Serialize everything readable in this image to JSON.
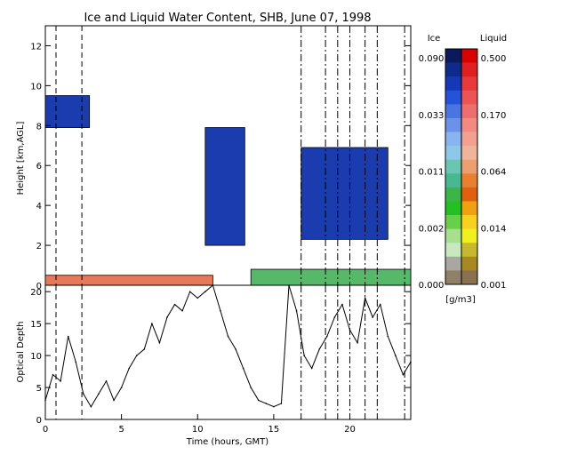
{
  "chart_data": [
    {
      "type": "heatmap",
      "title": "Ice and Liquid Water Content, SHB, June 07, 1998",
      "ylabel": "Height [km,AGL]",
      "xlim": [
        0,
        24
      ],
      "ylim": [
        0,
        13
      ],
      "yticks": [
        "0",
        "2",
        "4",
        "6",
        "8",
        "10",
        "12"
      ],
      "colorbar": {
        "ice_label": "Ice",
        "liquid_label": "Liquid",
        "units": "[g/m3]",
        "ice_ticks": [
          "0.090",
          "0.033",
          "0.011",
          "0.002",
          "0.000"
        ],
        "liquid_ticks": [
          "0.500",
          "0.170",
          "0.064",
          "0.014",
          "0.001"
        ],
        "ice_colors": [
          "#0a1a5a",
          "#0e2a8a",
          "#1638b8",
          "#2452d8",
          "#4a74e0",
          "#6a92e8",
          "#88b4f0",
          "#8ec8e8",
          "#6ac6b0",
          "#48b890",
          "#3cb44a",
          "#22c022",
          "#68d048",
          "#a6e08e",
          "#c8e8c0",
          "#a8a8a0",
          "#908068"
        ],
        "liquid_colors": [
          "#d80000",
          "#e02020",
          "#e83a3a",
          "#ec5454",
          "#ee6e6e",
          "#f28a82",
          "#f4a090",
          "#f0b49a",
          "#eca070",
          "#e88030",
          "#e06010",
          "#f0a010",
          "#f8d020",
          "#f0f020",
          "#c8b830",
          "#a88820",
          "#887050"
        ]
      },
      "cloud_regions": [
        {
          "phase": "ice",
          "t": [
            0.0,
            2.9
          ],
          "z": [
            7.9,
            9.5
          ]
        },
        {
          "phase": "ice",
          "t": [
            10.5,
            13.1
          ],
          "z": [
            2.0,
            7.9
          ]
        },
        {
          "phase": "ice",
          "t": [
            16.8,
            22.5
          ],
          "z": [
            2.3,
            6.9
          ]
        },
        {
          "phase": "liquid",
          "t": [
            0.0,
            11.0
          ],
          "z": [
            0.0,
            0.5
          ]
        },
        {
          "phase": "mixed",
          "t": [
            13.5,
            24.0
          ],
          "z": [
            0.0,
            0.8
          ]
        }
      ],
      "vertical_markers": [
        0.7,
        2.4,
        16.8,
        18.4,
        19.2,
        20.0,
        21.0,
        21.8,
        23.6
      ]
    },
    {
      "type": "line",
      "ylabel": "Optical Depth",
      "xlabel": "Time (hours, GMT)",
      "xlim": [
        0,
        24
      ],
      "ylim": [
        0,
        21
      ],
      "xticks": [
        "0",
        "5",
        "10",
        "15",
        "20"
      ],
      "yticks": [
        "0",
        "5",
        "10",
        "15",
        "20"
      ],
      "x": [
        0,
        0.5,
        1,
        1.5,
        2,
        2.5,
        3,
        3.5,
        4,
        4.5,
        5,
        5.5,
        6,
        6.5,
        7,
        7.5,
        8,
        8.5,
        9,
        9.5,
        10,
        10.5,
        11,
        11.5,
        12,
        12.5,
        13,
        13.5,
        14,
        14.5,
        15,
        15.5,
        16,
        16.5,
        17,
        17.5,
        18,
        18.5,
        19,
        19.5,
        20,
        20.5,
        21,
        21.5,
        22,
        22.5,
        23,
        23.5,
        24
      ],
      "values": [
        3,
        7,
        6,
        13,
        9,
        4,
        2,
        4,
        6,
        3,
        5,
        8,
        10,
        11,
        15,
        12,
        16,
        18,
        17,
        20,
        19,
        20,
        21,
        17,
        13,
        11,
        8,
        5,
        3,
        2.5,
        2,
        2.5,
        21,
        17,
        10,
        8,
        11,
        13,
        16,
        18,
        14,
        12,
        19,
        16,
        18,
        13,
        10,
        7,
        9
      ],
      "vertical_markers": [
        0.7,
        2.4,
        16.8,
        18.4,
        19.2,
        20.0,
        21.0,
        21.8,
        23.6
      ]
    }
  ]
}
